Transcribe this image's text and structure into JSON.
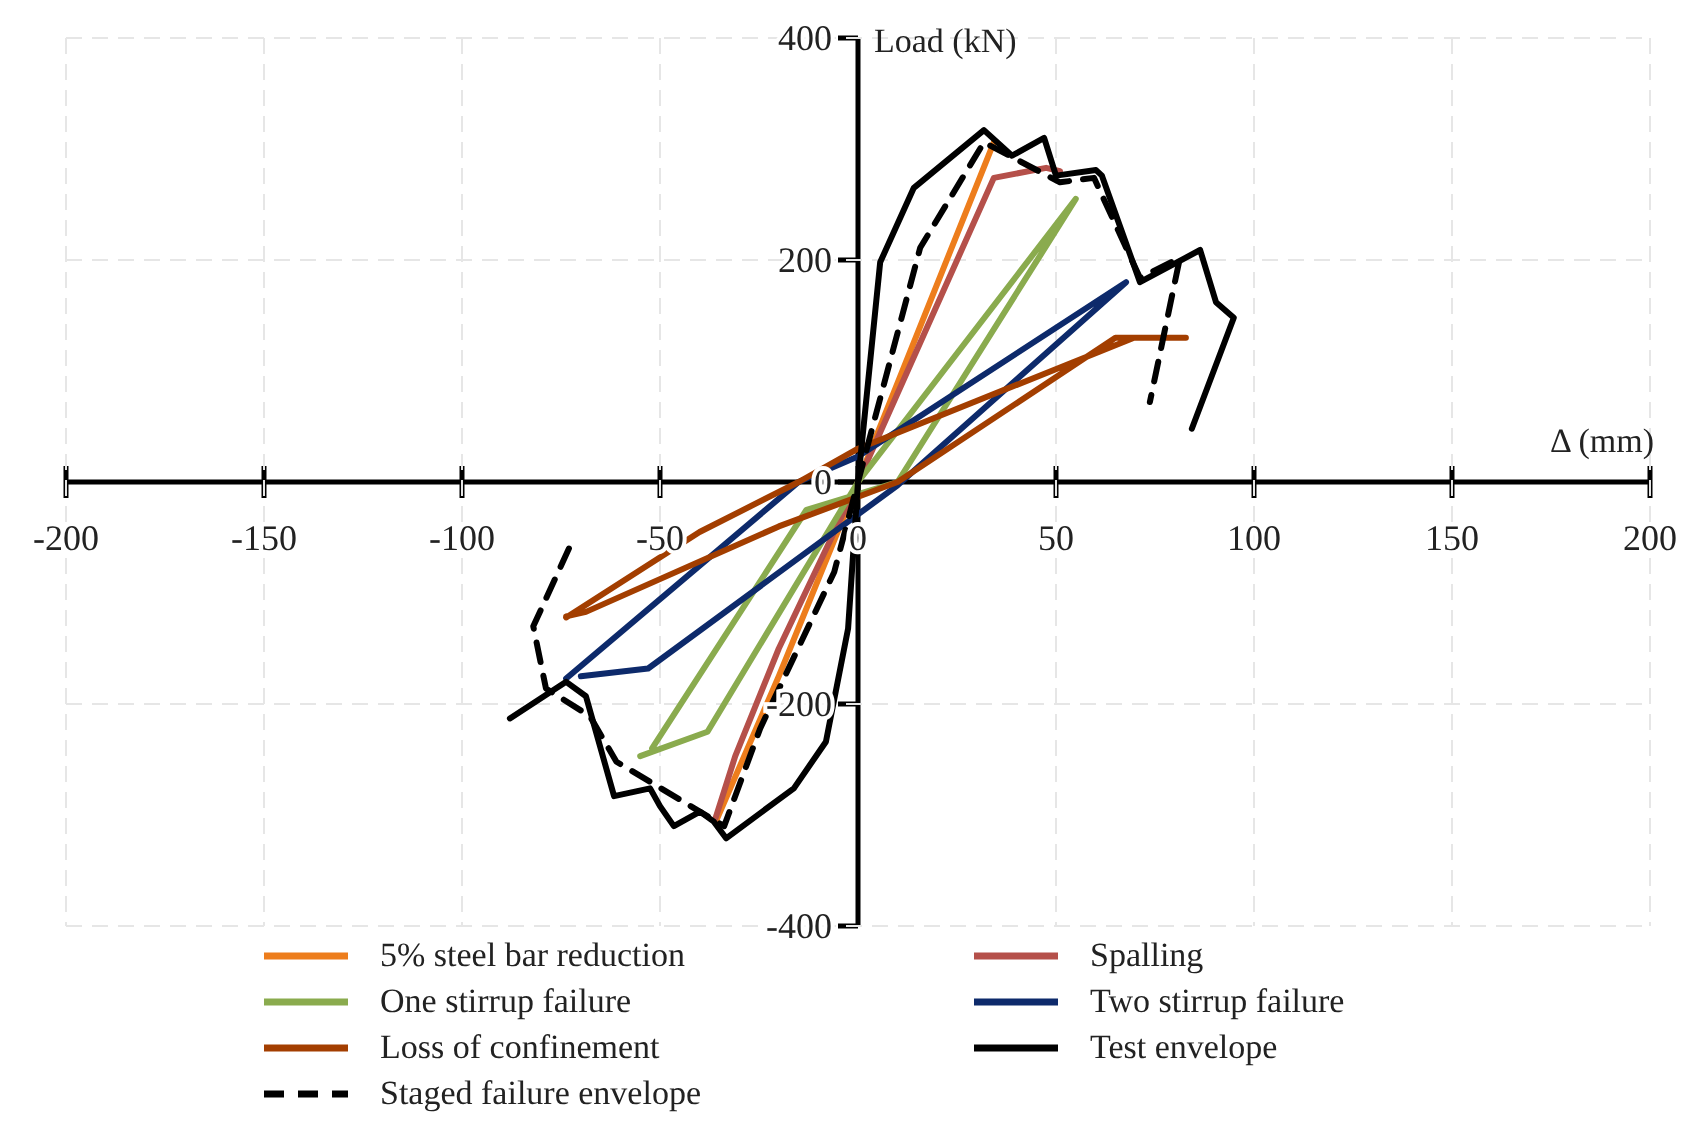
{
  "chart_data": {
    "type": "line",
    "xlabel": "Δ (mm)",
    "ylabel": "Load (kN)",
    "xlim": [
      -200,
      200
    ],
    "ylim": [
      -400,
      400
    ],
    "xticks": [
      -200,
      -150,
      -100,
      -50,
      0,
      50,
      100,
      150,
      200
    ],
    "yticks": [
      -400,
      -200,
      0,
      200,
      400
    ],
    "grid": true,
    "legend": "bottom",
    "marker": "none",
    "series": [
      {
        "name": "5% steel bar reduction",
        "color": "#ed7d1c",
        "x": [
          -35.9,
          -20,
          0,
          34.3
        ],
        "values": [
          -306,
          -175,
          0,
          306
        ]
      },
      {
        "name": "Spalling",
        "color": "#b5504a",
        "x": [
          -36,
          -31,
          -20,
          0,
          34.3,
          47.5,
          51
        ],
        "values": [
          -303,
          -247,
          -150,
          0,
          274,
          283,
          280
        ]
      },
      {
        "name": "One stirrup failure",
        "color": "#8aab4e",
        "x": [
          -55,
          -38,
          0,
          55,
          10,
          -13,
          -52
        ],
        "values": [
          -247,
          -225,
          0,
          255,
          0,
          -25,
          -240
        ]
      },
      {
        "name": "Two stirrup failure",
        "color": "#0d2a6b",
        "x": [
          -73.7,
          -15,
          0,
          67.7,
          10,
          -53,
          -70
        ],
        "values": [
          -177,
          0,
          23,
          180,
          -3,
          -168,
          -175
        ]
      },
      {
        "name": "Loss of confinement",
        "color": "#a33e00",
        "x": [
          -73.7,
          -40,
          -15,
          0,
          69.7,
          82.8,
          65,
          10,
          -20,
          -68.7,
          -73.7
        ],
        "values": [
          -122,
          -45,
          0,
          30,
          130,
          130,
          130,
          0,
          -40,
          -117,
          -121
        ]
      },
      {
        "name": "Test envelope",
        "color": "#000000",
        "x": [
          -87.9,
          -73.7,
          -68.7,
          -61.6,
          -52.5,
          -50,
          -46.5,
          -39.9,
          -36.4,
          -33.3,
          -16.2,
          -8.1,
          -2.5,
          0,
          5.6,
          14.1,
          31.8,
          38.9,
          47,
          50,
          60.1,
          61.6,
          71.2,
          86.4,
          90.4,
          94.9,
          84.3
        ],
        "values": [
          -213,
          -180,
          -193,
          -283,
          -276,
          -292,
          -310,
          -297,
          -306,
          -321,
          -276,
          -234,
          -132,
          0,
          198,
          265,
          317,
          294,
          310,
          276,
          281,
          276,
          180,
          209,
          162,
          148,
          48
        ]
      },
      {
        "name": "Staged failure envelope",
        "color": "#000000",
        "line_style": "dashed",
        "x": [
          -73,
          -82,
          -78.8,
          -67.7,
          -61,
          -33.8,
          -24.7,
          -6,
          0,
          15.7,
          31.8,
          51,
          59.6,
          71.2,
          81.3,
          73.7
        ],
        "values": [
          -60,
          -130,
          -186,
          -211,
          -252,
          -310,
          -222,
          -81,
          0,
          211,
          306,
          270,
          274,
          184,
          202,
          72
        ]
      }
    ]
  }
}
